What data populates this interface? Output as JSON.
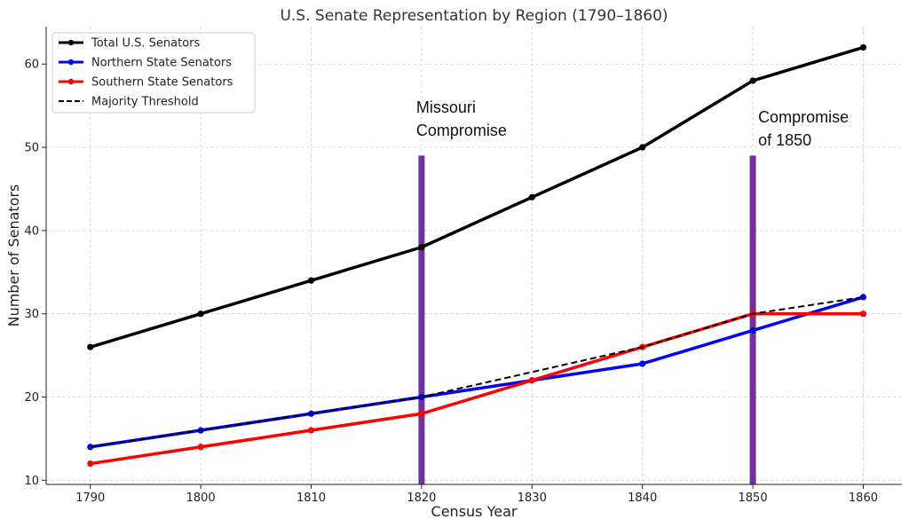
{
  "chart_data": {
    "type": "line",
    "title": "U.S. Senate Representation by Region (1790–1860)",
    "xlabel": "Census Year",
    "ylabel": "Number of Senators",
    "x": [
      1790,
      1800,
      1810,
      1820,
      1830,
      1840,
      1850,
      1860
    ],
    "xlim": [
      1786,
      1863.5
    ],
    "ylim": [
      9.5,
      64.5
    ],
    "yticks": [
      10,
      20,
      30,
      40,
      50,
      60
    ],
    "grid": true,
    "legend_position": "top-left",
    "series": [
      {
        "name": "Total U.S. Senators",
        "color": "#000000",
        "style": "solid",
        "marker": true,
        "values": [
          26,
          30,
          34,
          38,
          44,
          50,
          58,
          62
        ]
      },
      {
        "name": "Northern State Senators",
        "color": "#0000ff",
        "style": "solid",
        "marker": true,
        "values": [
          14,
          16,
          18,
          20,
          22,
          24,
          28,
          32
        ]
      },
      {
        "name": "Southern State Senators",
        "color": "#ff0000",
        "style": "solid",
        "marker": true,
        "values": [
          12,
          14,
          16,
          18,
          22,
          26,
          30,
          30
        ]
      },
      {
        "name": "Majority Threshold",
        "color": "#000000",
        "style": "dashed",
        "marker": false,
        "values": [
          14,
          16,
          18,
          20,
          23,
          26,
          30,
          32
        ]
      }
    ],
    "annotations": [
      {
        "x": 1820,
        "color": "#7030a0",
        "y_top": 49,
        "lines": [
          "Missouri",
          "Compromise"
        ]
      },
      {
        "x": 1850,
        "color": "#7030a0",
        "y_top": 49,
        "lines": [
          "Compromise",
          "of 1850"
        ]
      }
    ]
  }
}
